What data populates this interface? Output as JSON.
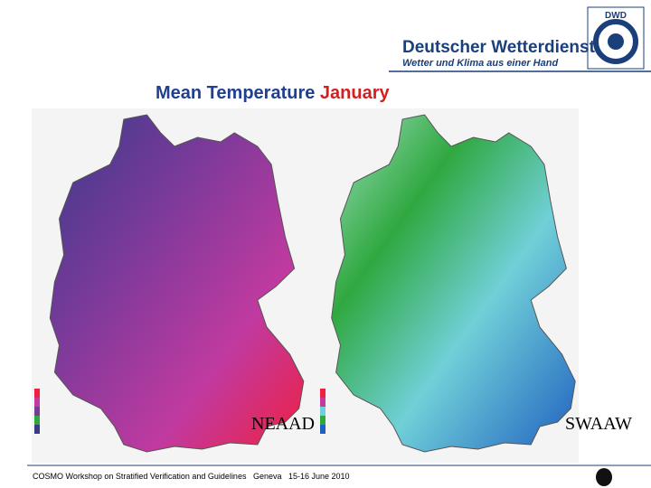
{
  "header": {
    "logo_abbrev": "DWD",
    "brand": "Deutscher Wetterdienst",
    "tagline": "Wetter und Klima aus einer Hand"
  },
  "title": {
    "main": "Mean Temperature",
    "highlight": "January"
  },
  "maps": [
    {
      "label": "NEAAD"
    },
    {
      "label": "SWAAW"
    }
  ],
  "footer": "COSMO Workshop on Stratified Verification and Guidelines   Geneva   15-16 June 2010"
}
